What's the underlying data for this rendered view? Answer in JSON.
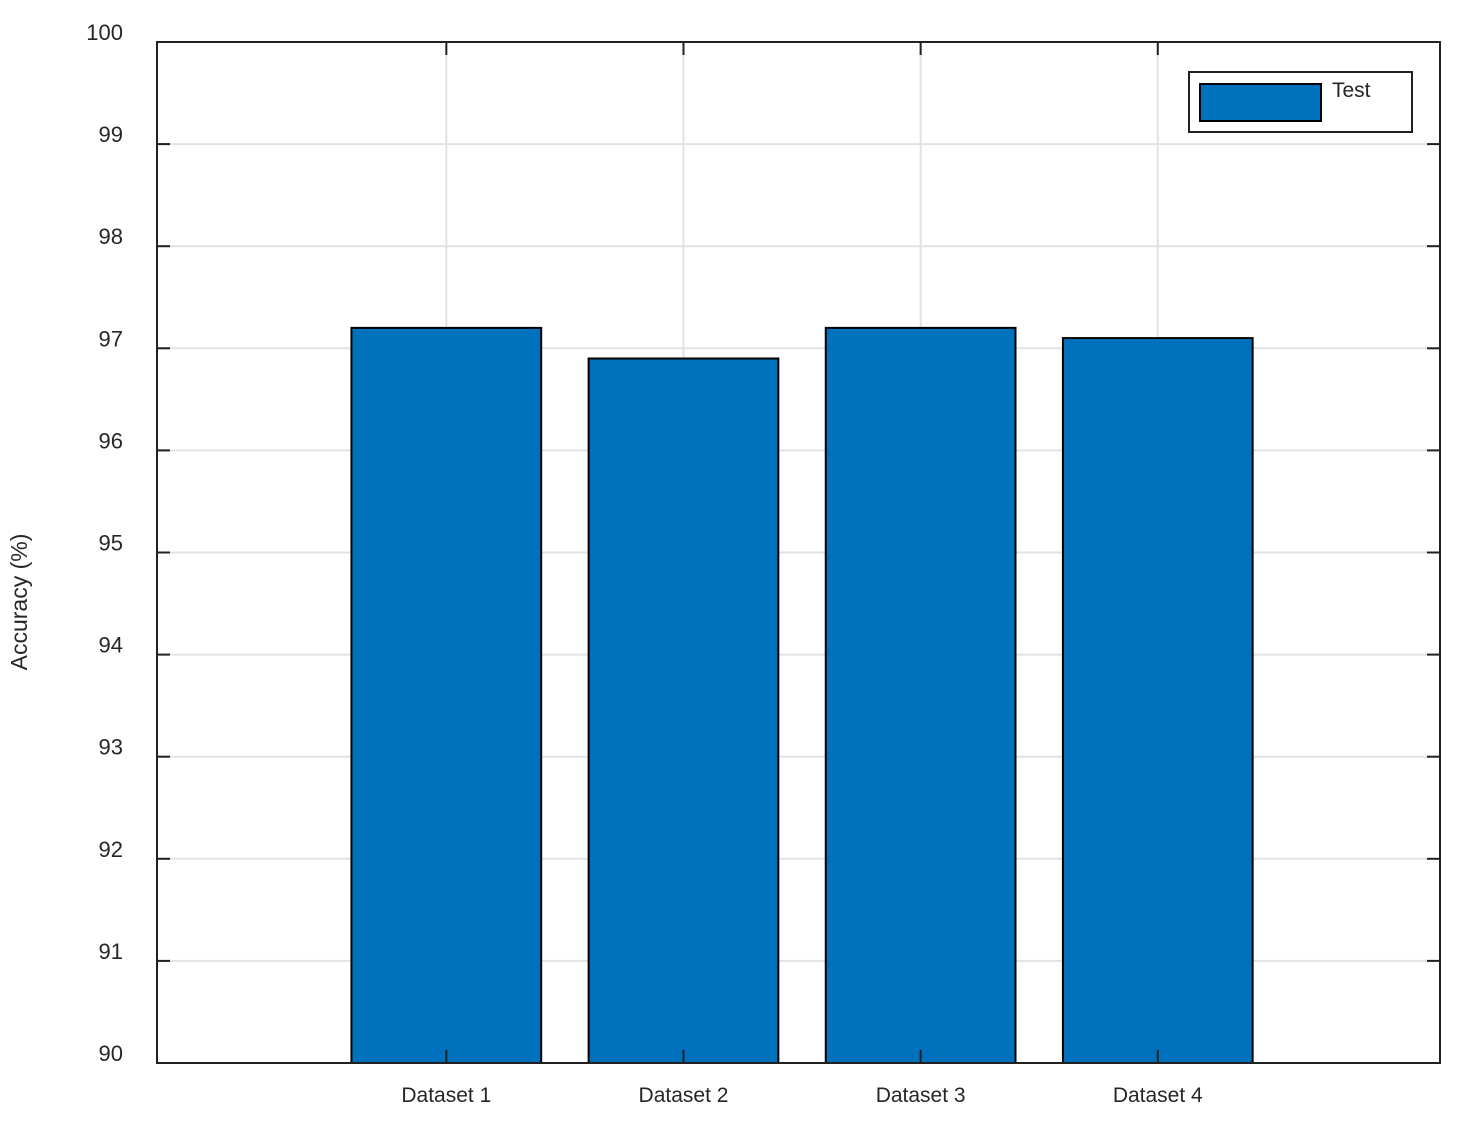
{
  "figure": {
    "background": "#ffffff"
  },
  "chart_data": {
    "type": "bar",
    "title": "",
    "categories": [
      "Dataset 1",
      "Dataset 2",
      "Dataset 3",
      "Dataset 4"
    ],
    "series": [
      {
        "name": "Test",
        "values": [
          97.2,
          96.9,
          97.2,
          97.1
        ],
        "color": "#0072BD",
        "edge_color": "#000000"
      }
    ],
    "xlabel": "",
    "ylabel": "Accuracy (%)",
    "ylim": [
      90,
      100
    ],
    "yticks": [
      90,
      91,
      92,
      93,
      94,
      95,
      96,
      97,
      98,
      99,
      100
    ],
    "xlim": [
      -0.22,
      5.19
    ],
    "bar_width": 0.8,
    "grid": true,
    "grid_color": "#e2e2e2",
    "axis_color": "#212121",
    "text_color": "#262626",
    "legend": {
      "position": "top-right",
      "entries": [
        "Test"
      ]
    }
  }
}
